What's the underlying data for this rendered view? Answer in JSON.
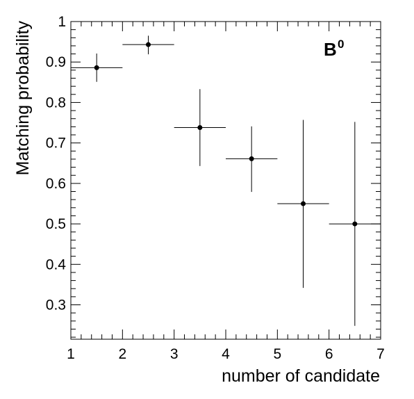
{
  "chart_data": {
    "type": "scatter",
    "title": "",
    "xlabel": "number of candidate",
    "ylabel": "Matching probability",
    "xlim": [
      1,
      7
    ],
    "ylim": [
      0.215,
      1.0
    ],
    "grid": false,
    "annotation": {
      "base": "B",
      "sup": "0"
    },
    "x_ticks": [
      "1",
      "2",
      "3",
      "4",
      "5",
      "6",
      "7"
    ],
    "y_ticks": [
      "0.3",
      "0.4",
      "0.5",
      "0.6",
      "0.7",
      "0.8",
      "0.9",
      "1"
    ],
    "series": [
      {
        "points": [
          {
            "x": 1.5,
            "y": 0.886,
            "x_err": 0.5,
            "y_low": 0.851,
            "y_high": 0.921
          },
          {
            "x": 2.5,
            "y": 0.943,
            "x_err": 0.5,
            "y_low": 0.919,
            "y_high": 0.965
          },
          {
            "x": 3.5,
            "y": 0.738,
            "x_err": 0.5,
            "y_low": 0.643,
            "y_high": 0.833
          },
          {
            "x": 4.5,
            "y": 0.661,
            "x_err": 0.5,
            "y_low": 0.579,
            "y_high": 0.741
          },
          {
            "x": 5.5,
            "y": 0.55,
            "x_err": 0.5,
            "y_low": 0.342,
            "y_high": 0.757
          },
          {
            "x": 6.5,
            "y": 0.5,
            "x_err": 0.5,
            "y_low": 0.248,
            "y_high": 0.752
          }
        ]
      }
    ]
  }
}
